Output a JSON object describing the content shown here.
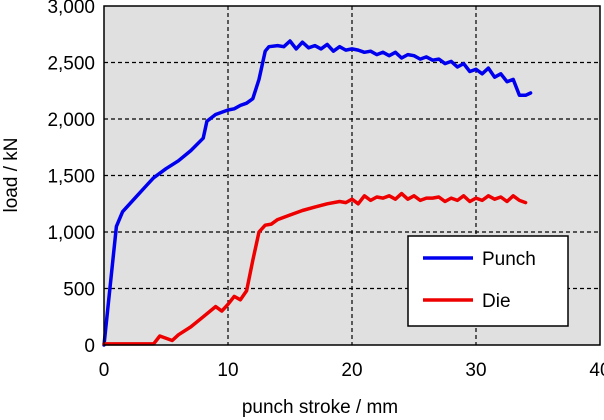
{
  "chart_data": {
    "type": "line",
    "title": "",
    "xlabel": "punch stroke / mm",
    "ylabel": "load / kN",
    "xlim": [
      0,
      40
    ],
    "ylim": [
      0,
      3000
    ],
    "xticks": [
      0,
      10,
      20,
      30,
      40
    ],
    "xtick_labels": [
      "0",
      "10",
      "20",
      "30",
      "40"
    ],
    "yticks": [
      0,
      500,
      1000,
      1500,
      2000,
      2500,
      3000
    ],
    "ytick_labels": [
      "0",
      "500",
      "1,000",
      "1,500",
      "2,000",
      "2,500",
      "3,000"
    ],
    "grid": true,
    "legend_position": "bottom-right",
    "plot_background": "#e0e0e0",
    "series": [
      {
        "name": "Punch",
        "color": "#0000ee",
        "x": [
          0,
          1,
          1.5,
          2.5,
          3.5,
          4,
          5,
          6,
          7,
          8,
          8.3,
          9,
          10,
          10.5,
          11,
          11.5,
          12,
          12.5,
          13,
          13.3,
          14,
          14.5,
          15,
          15.5,
          16,
          16.5,
          17,
          17.5,
          18,
          18.5,
          19,
          19.5,
          20,
          20.5,
          21,
          21.5,
          22,
          22.5,
          23,
          23.5,
          24,
          24.5,
          25,
          25.5,
          26,
          26.5,
          27,
          27.5,
          28,
          28.5,
          29,
          29.5,
          30,
          30.5,
          31,
          31.5,
          32,
          32.5,
          33,
          33.5,
          34,
          34.4
        ],
        "y": [
          0,
          1050,
          1180,
          1300,
          1420,
          1480,
          1560,
          1630,
          1720,
          1830,
          1980,
          2040,
          2080,
          2090,
          2120,
          2140,
          2180,
          2350,
          2600,
          2640,
          2650,
          2640,
          2690,
          2620,
          2680,
          2630,
          2650,
          2620,
          2660,
          2600,
          2640,
          2610,
          2620,
          2610,
          2590,
          2600,
          2570,
          2590,
          2560,
          2590,
          2540,
          2570,
          2560,
          2530,
          2550,
          2520,
          2530,
          2490,
          2510,
          2460,
          2490,
          2420,
          2440,
          2400,
          2450,
          2370,
          2400,
          2330,
          2350,
          2210,
          2210,
          2230
        ]
      },
      {
        "name": "Die",
        "color": "#ee0000",
        "x": [
          0,
          4,
          4.5,
          5.5,
          6,
          7,
          8,
          9,
          9.5,
          10,
          10.5,
          11,
          11.5,
          12,
          12.5,
          13,
          13.5,
          14,
          15,
          16,
          17,
          18,
          19,
          19.5,
          20,
          20.5,
          21,
          21.5,
          22,
          22.5,
          23,
          23.5,
          24,
          24.5,
          25,
          25.5,
          26,
          26.5,
          27,
          27.5,
          28,
          28.5,
          29,
          29.5,
          30,
          30.5,
          31,
          31.5,
          32,
          32.5,
          33,
          33.5,
          34
        ],
        "y": [
          10,
          10,
          80,
          40,
          90,
          160,
          250,
          340,
          300,
          360,
          430,
          400,
          480,
          750,
          1000,
          1060,
          1070,
          1110,
          1150,
          1190,
          1220,
          1250,
          1270,
          1260,
          1290,
          1250,
          1320,
          1280,
          1310,
          1300,
          1320,
          1290,
          1340,
          1290,
          1320,
          1280,
          1300,
          1300,
          1310,
          1270,
          1300,
          1280,
          1320,
          1270,
          1300,
          1280,
          1320,
          1290,
          1310,
          1270,
          1320,
          1280,
          1260
        ]
      }
    ]
  }
}
